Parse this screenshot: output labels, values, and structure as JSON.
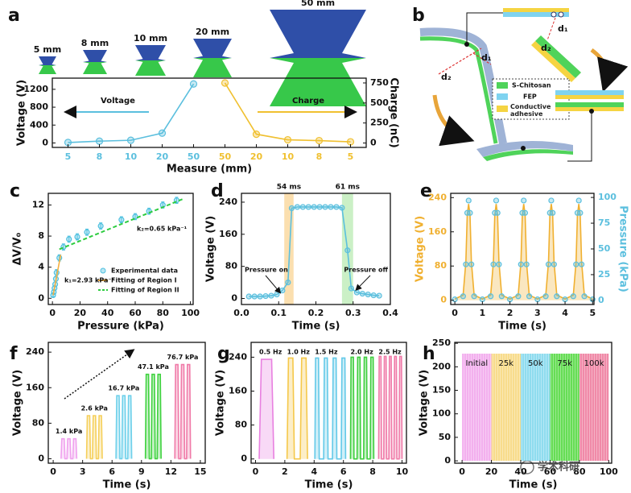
{
  "panel_labels": [
    "a",
    "b",
    "c",
    "d",
    "e",
    "f",
    "g",
    "h"
  ],
  "photo_labels": [
    "5 mm",
    "8 mm",
    "10 mm",
    "20 mm",
    "50 mm"
  ],
  "diagram": {
    "distances": [
      "d₁",
      "d₂",
      "d₁",
      "d₂"
    ],
    "legend": [
      "S-Chitosan",
      "FEP",
      "Conductive adhesive"
    ]
  },
  "watermark": "学术科研",
  "chart_data": [
    {
      "type": "line",
      "categories": [
        "5",
        "8",
        "10",
        "20",
        "50",
        "50",
        "20",
        "10",
        "8",
        "5"
      ],
      "series": [
        {
          "name": "Voltage",
          "color": "#5bbfde",
          "mode": "line+markers",
          "values": [
            10,
            40,
            60,
            220,
            1320,
            null,
            null,
            null,
            null,
            null
          ]
        },
        {
          "name": "Charge",
          "color": "#f0c030",
          "mode": "line+markers",
          "axis": "y2",
          "values": [
            null,
            null,
            null,
            null,
            null,
            750,
            110,
            40,
            30,
            15
          ]
        }
      ],
      "ylim": [
        -100,
        1450
      ],
      "yticks": [
        0,
        400,
        800,
        1200
      ],
      "y2lim": [
        -55,
        810
      ],
      "y2ticks": [
        0,
        250,
        500,
        750
      ],
      "x_label": "Measure (mm)",
      "y_label": "Voltage (V)",
      "y2_label": "Charge (nC)"
    },
    {
      "type": "scatter",
      "x_label": "Pressure (kPa)",
      "y_label": "ΔV/V₀",
      "xlim": [
        -3,
        102
      ],
      "xticks": [
        0,
        20,
        40,
        60,
        80,
        100
      ],
      "ylim": [
        -0.8,
        13.5
      ],
      "yticks": [
        0,
        4,
        8,
        12
      ],
      "series": [
        {
          "name": "Experimental data",
          "color": "#4fc1e0",
          "mode": "markers",
          "x": [
            0.5,
            1,
            1.5,
            2,
            2.5,
            3,
            5,
            8,
            12,
            18,
            25,
            35,
            50,
            60,
            70,
            80,
            90
          ],
          "values": [
            0.4,
            0.8,
            1.3,
            1.8,
            2.5,
            3.3,
            5.2,
            6.6,
            7.6,
            7.9,
            8.5,
            9.3,
            10.1,
            10.5,
            11.2,
            12,
            12.6
          ],
          "errors": [
            0.2,
            0.3,
            0.3,
            0.3,
            0.3,
            0.4,
            0.4,
            0.4,
            0.4,
            0.4,
            0.4,
            0.4,
            0.4,
            0.4,
            0.4,
            0.4,
            0.4
          ]
        },
        {
          "name": "Fitting of Region I",
          "color": "#f5b041",
          "mode": "line",
          "x": [
            0.5,
            6
          ],
          "values": [
            0.4,
            5.6
          ]
        },
        {
          "name": "Fitting of Region II",
          "color": "#2ecc40",
          "mode": "dashed",
          "x": [
            5,
            95
          ],
          "values": [
            6.3,
            12.8
          ]
        }
      ],
      "legend": "lower right",
      "annotations": [
        "k₂=0.65 kPa⁻¹",
        "k₁=2.93 kPa⁻¹"
      ]
    },
    {
      "type": "line",
      "x_label": "Time (s)",
      "y_label": "Voltage (V)",
      "xlim": [
        0,
        0.4
      ],
      "xticks": [
        {
          "value": 0,
          "label": "0.0"
        },
        0.1,
        0.2,
        0.3,
        0.4
      ],
      "ylim": [
        -15,
        262
      ],
      "yticks": [
        0,
        80,
        160,
        240
      ],
      "x": [
        0.02,
        0.035,
        0.05,
        0.065,
        0.08,
        0.095,
        0.11,
        0.125,
        0.135,
        0.15,
        0.165,
        0.18,
        0.195,
        0.21,
        0.225,
        0.24,
        0.255,
        0.27,
        0.285,
        0.295,
        0.31,
        0.325,
        0.34,
        0.355,
        0.37
      ],
      "series": [
        {
          "color": "#5bbfde",
          "mode": "line+markers",
          "values": [
            5,
            5,
            5,
            6,
            7,
            10,
            20,
            40,
            225,
            228,
            228,
            228,
            228,
            228,
            228,
            228,
            228,
            226,
            120,
            25,
            15,
            12,
            10,
            8,
            7
          ]
        }
      ],
      "spans": [
        [
          0.115,
          0.14
        ],
        [
          0.27,
          0.3
        ]
      ],
      "span_colors": [
        "#f9c97a",
        "#a8e6a0"
      ],
      "annotations": [
        "54 ms",
        "61 ms",
        "Pressure on",
        "Pressure off"
      ]
    },
    {
      "type": "line",
      "x_label": "Time (s)",
      "y_label": "Voltage (V)",
      "y2_label": "Pressure (kPa)",
      "axis_colors": true,
      "xlim": [
        -0.15,
        5.05
      ],
      "xticks": [
        0,
        1,
        2,
        3,
        4,
        5
      ],
      "ylim": [
        -10,
        250
      ],
      "yticks": [
        0,
        80,
        160,
        240
      ],
      "y2lim": [
        -4,
        104
      ],
      "y2ticks": [
        0,
        25,
        50,
        75,
        100
      ],
      "x": [
        0,
        0.3,
        0.4,
        0.45,
        0.5,
        0.55,
        0.6,
        0.7,
        1,
        1.3,
        1.4,
        1.45,
        1.5,
        1.55,
        1.6,
        1.7,
        2,
        2.3,
        2.4,
        2.45,
        2.5,
        2.55,
        2.6,
        2.7,
        3,
        3.3,
        3.4,
        3.45,
        3.5,
        3.55,
        3.6,
        3.7,
        4,
        4.3,
        4.4,
        4.45,
        4.5,
        4.55,
        4.6,
        4.7,
        5
      ],
      "series": [
        {
          "color": "#f0b030",
          "mode": "line",
          "fill": true,
          "values": [
            3,
            12,
            90,
            200,
            225,
            200,
            90,
            12,
            3,
            12,
            90,
            200,
            225,
            200,
            90,
            12,
            3,
            12,
            90,
            200,
            225,
            200,
            90,
            12,
            3,
            12,
            90,
            200,
            225,
            200,
            90,
            12,
            3,
            12,
            90,
            200,
            225,
            200,
            90,
            12,
            3
          ]
        },
        {
          "color": "#5bbfde",
          "mode": "markers",
          "axis": "y2",
          "values": [
            1,
            4,
            35,
            85,
            97,
            85,
            35,
            4,
            1,
            4,
            35,
            85,
            97,
            85,
            35,
            4,
            1,
            4,
            35,
            85,
            97,
            85,
            35,
            4,
            1,
            4,
            35,
            85,
            97,
            85,
            35,
            4,
            1,
            4,
            35,
            85,
            97,
            85,
            35,
            4,
            1
          ]
        }
      ]
    },
    {
      "type": "line",
      "x_label": "Time (s)",
      "y_label": "Voltage (V)",
      "xlim": [
        -0.5,
        15.5
      ],
      "xticks": [
        0,
        3,
        6,
        9,
        12,
        15
      ],
      "ylim": [
        -10,
        262
      ],
      "yticks": [
        0,
        80,
        160,
        240
      ],
      "series": [
        {
          "name": "1.4 kPa",
          "color": "#f0a0ee",
          "mode": "line",
          "fill": true,
          "x": [
            0.8,
            0.88,
            1.12,
            1.2,
            1.4,
            1.48,
            1.72,
            1.8,
            2.0,
            2.08,
            2.32,
            2.4
          ],
          "values": [
            0,
            45,
            45,
            0,
            0,
            45,
            45,
            0,
            0,
            45,
            45,
            0
          ]
        },
        {
          "name": "2.6 kPa",
          "color": "#f5cf5a",
          "mode": "line",
          "fill": true,
          "x": [
            3.4,
            3.48,
            3.72,
            3.8,
            4.0,
            4.08,
            4.32,
            4.4,
            4.6,
            4.68,
            4.92,
            5.0
          ],
          "values": [
            0,
            97,
            97,
            0,
            0,
            97,
            97,
            0,
            0,
            97,
            97,
            0
          ]
        },
        {
          "name": "16.7 kPa",
          "color": "#6dd0ea",
          "mode": "line",
          "fill": true,
          "x": [
            6.4,
            6.48,
            6.72,
            6.8,
            7.0,
            7.08,
            7.32,
            7.4,
            7.6,
            7.68,
            7.92,
            8.0
          ],
          "values": [
            0,
            142,
            142,
            0,
            0,
            142,
            142,
            0,
            0,
            142,
            142,
            0
          ]
        },
        {
          "name": "47.1 kPa",
          "color": "#3ed23e",
          "mode": "line",
          "fill": true,
          "x": [
            9.4,
            9.48,
            9.72,
            9.8,
            10.0,
            10.08,
            10.32,
            10.4,
            10.6,
            10.68,
            10.92,
            11.0
          ],
          "values": [
            0,
            190,
            190,
            0,
            0,
            190,
            190,
            0,
            0,
            190,
            190,
            0
          ]
        },
        {
          "name": "76.7 kPa",
          "color": "#f07aa8",
          "mode": "line",
          "fill": true,
          "x": [
            12.4,
            12.48,
            12.72,
            12.8,
            13.0,
            13.08,
            13.32,
            13.4,
            13.6,
            13.68,
            13.92,
            14.0
          ],
          "values": [
            0,
            212,
            212,
            0,
            0,
            212,
            212,
            0,
            0,
            212,
            212,
            0
          ]
        }
      ]
    },
    {
      "type": "line",
      "x_label": "Time (s)",
      "y_label": "Voltage (V)",
      "xlim": [
        -0.3,
        10.3
      ],
      "xticks": [
        0,
        2,
        4,
        6,
        8,
        10
      ],
      "ylim": [
        -10,
        275
      ],
      "yticks": [
        0,
        80,
        160,
        240
      ],
      "series": [
        {
          "name": "0.5 Hz",
          "color": "#e880e0",
          "mode": "line",
          "fill": true,
          "x": [
            0.25,
            0.4,
            1.1,
            1.25
          ],
          "values": [
            0,
            235,
            235,
            0
          ]
        },
        {
          "name": "1.0 Hz",
          "color": "#f5c84a",
          "mode": "line",
          "fill": true,
          "x": [
            2.15,
            2.25,
            2.55,
            2.65,
            3.05,
            3.15,
            3.45,
            3.55
          ],
          "values": [
            0,
            238,
            238,
            0,
            0,
            238,
            238,
            0
          ]
        },
        {
          "name": "1.5 Hz",
          "color": "#62c9e8",
          "mode": "line",
          "fill": true,
          "x": [
            4.05,
            4.1,
            4.3,
            4.35,
            4.65,
            4.7,
            4.9,
            4.95,
            5.25,
            5.3,
            5.5,
            5.55,
            5.85,
            5.9,
            6.1,
            6.15
          ],
          "values": [
            0,
            238,
            238,
            0,
            0,
            238,
            238,
            0,
            0,
            238,
            238,
            0,
            0,
            238,
            238,
            0
          ]
        },
        {
          "name": "2.0 Hz",
          "color": "#3ecf3e",
          "mode": "line",
          "fill": true,
          "x": [
            6.48,
            6.52,
            6.68,
            6.72,
            6.93,
            6.97,
            7.13,
            7.17,
            7.38,
            7.42,
            7.58,
            7.62,
            7.83,
            7.87,
            8.03,
            8.07
          ],
          "values": [
            0,
            240,
            240,
            0,
            0,
            240,
            240,
            0,
            0,
            240,
            240,
            0,
            0,
            240,
            240,
            0
          ]
        },
        {
          "name": "2.5 Hz",
          "color": "#f07aa8",
          "mode": "line",
          "fill": true,
          "x": [
            8.4,
            8.44,
            8.56,
            8.6,
            8.75,
            8.79,
            8.91,
            8.95,
            9.1,
            9.14,
            9.26,
            9.3,
            9.45,
            9.49,
            9.61,
            9.65,
            9.8,
            9.84,
            9.96,
            10.0
          ],
          "values": [
            0,
            242,
            242,
            0,
            0,
            242,
            242,
            0,
            0,
            242,
            242,
            0,
            0,
            242,
            242,
            0,
            0,
            242,
            242,
            0
          ]
        }
      ]
    },
    {
      "type": "histogram",
      "x_label": "Time (s)",
      "y_label": "Voltage (V)",
      "xlim": [
        -5,
        102
      ],
      "xticks": [
        0,
        20,
        40,
        60,
        80,
        100
      ],
      "ylim": [
        -5,
        252
      ],
      "yticks": [
        0,
        50,
        100,
        150,
        200,
        250
      ],
      "bins": [
        0,
        20,
        40,
        60,
        80,
        100
      ],
      "values": [
        228,
        228,
        228,
        228,
        228
      ],
      "categories": [
        "Initial",
        "25k",
        "50k",
        "75k",
        "100k"
      ],
      "colors": [
        "#f3b0ee",
        "#f8dc8c",
        "#8fdcef",
        "#66dd55",
        "#f08aa8"
      ]
    }
  ]
}
